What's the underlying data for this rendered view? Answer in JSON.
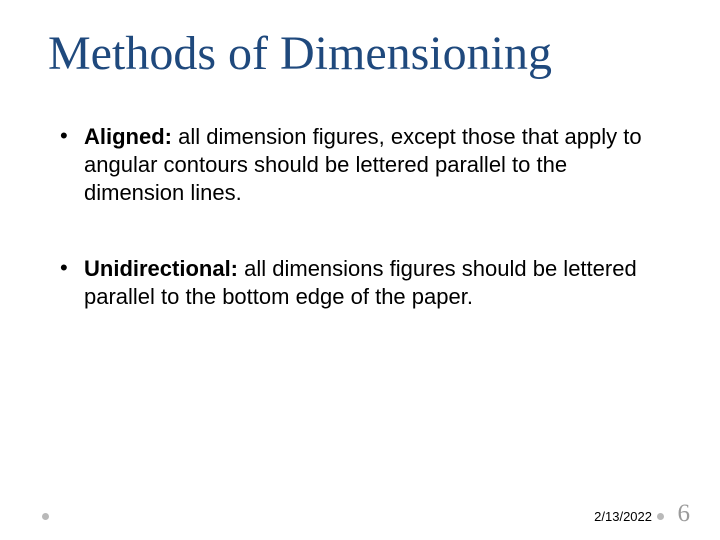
{
  "title": {
    "text": "Methods of Dimensioning",
    "color": "#1f497d",
    "fontsize": 48
  },
  "bullets": [
    {
      "label": "Aligned:",
      "body": " all dimension figures, except those that apply to angular contours should be lettered parallel to the dimension lines.",
      "fontsize": 22
    },
    {
      "label": "Unidirectional:",
      "body": " all dimensions figures should be lettered parallel to the bottom edge of the paper.",
      "fontsize": 22
    }
  ],
  "footer": {
    "date_text": "2/13/2022",
    "date_fontsize": 13,
    "date_right": 68,
    "page_number": "6",
    "page_fontsize": 25,
    "page_color": "#9b9b9b",
    "dot_color": "#b9b9b9"
  }
}
